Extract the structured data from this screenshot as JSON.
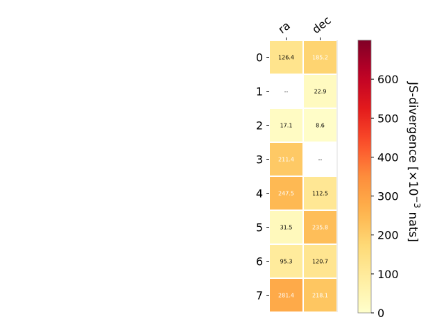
{
  "chart_data": {
    "type": "heatmap",
    "columns": [
      "ra",
      "dec"
    ],
    "rows": [
      "0",
      "1",
      "2",
      "3",
      "4",
      "5",
      "6",
      "7"
    ],
    "values": [
      [
        126.4,
        185.2
      ],
      [
        null,
        22.9
      ],
      [
        17.1,
        8.6
      ],
      [
        211.4,
        null
      ],
      [
        247.5,
        112.5
      ],
      [
        31.5,
        235.8
      ],
      [
        95.3,
        120.7
      ],
      [
        281.4,
        218.1
      ]
    ],
    "cell_labels": [
      [
        "126.4",
        "185.2"
      ],
      [
        "--",
        "22.9"
      ],
      [
        "17.1",
        "8.6"
      ],
      [
        "211.4",
        "--"
      ],
      [
        "247.5",
        "112.5"
      ],
      [
        "31.5",
        "235.8"
      ],
      [
        "95.3",
        "120.7"
      ],
      [
        "281.4",
        "218.1"
      ]
    ],
    "colormap": "YlOrRd",
    "colorbar": {
      "label_prefix": "JS-divergence [×10",
      "label_exponent": "−3",
      "label_suffix": " nats]",
      "range": [
        0,
        700
      ],
      "ticks": [
        "0",
        "100",
        "200",
        "300",
        "400",
        "500",
        "600"
      ]
    },
    "colors": {
      "label_dark": "#000000",
      "label_light": "#ffffff",
      "grid": "#ffffff"
    }
  }
}
